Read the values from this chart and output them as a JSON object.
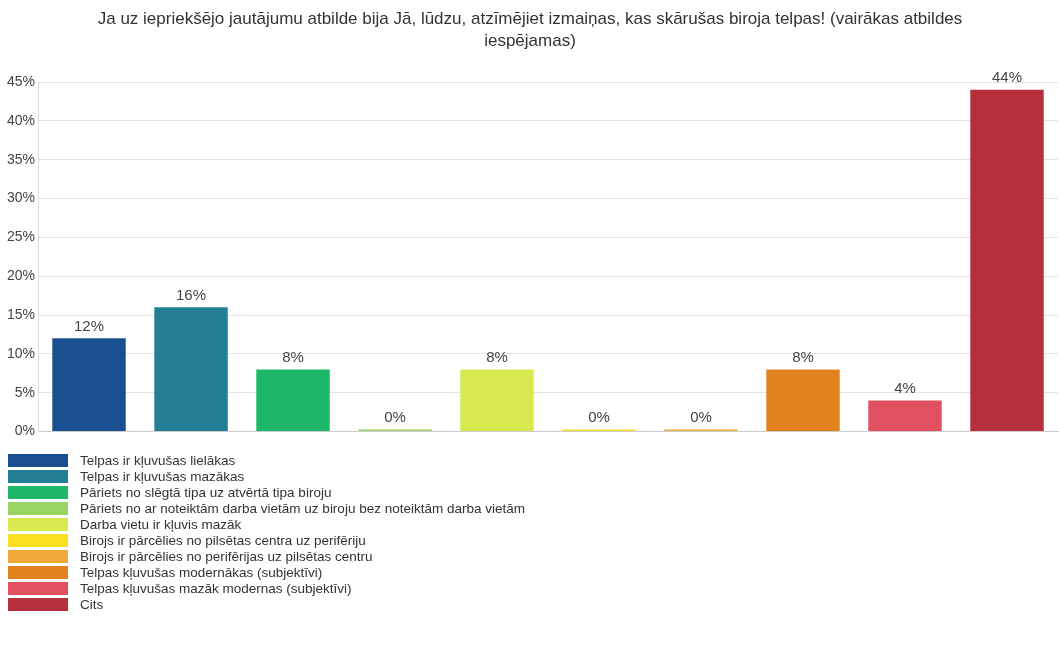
{
  "chart_data": {
    "type": "bar",
    "title": "Ja uz iepriekšējo jautājumu atbilde bija Jā, lūdzu, atzīmējiet izmaiņas, kas skārušas biroja telpas! (vairākas atbildes iespējamas)",
    "categories": [
      null
    ],
    "series": [
      {
        "name": "Telpas ir kļuvušas lielākas",
        "color": "#1a4f8f",
        "values": [
          12
        ],
        "value_labels": [
          "12%"
        ]
      },
      {
        "name": "Telpas ir kļuvušas mazākas",
        "color": "#227f95",
        "values": [
          16
        ],
        "value_labels": [
          "16%"
        ]
      },
      {
        "name": "Pāriets no slēgtā tipa uz atvērtā tipa biroju",
        "color": "#1fb86a",
        "values": [
          8
        ],
        "value_labels": [
          "8%"
        ]
      },
      {
        "name": "Pāriets no ar noteiktām darba vietām uz biroju bez noteiktām darba vietām",
        "color": "#9ad463",
        "values": [
          0
        ],
        "value_labels": [
          "0%"
        ]
      },
      {
        "name": "Darba vietu ir kļuvis mazāk",
        "color": "#d8e84f",
        "values": [
          8
        ],
        "value_labels": [
          "8%"
        ]
      },
      {
        "name": "Birojs ir pārcēlies no pilsētas centra uz perifēriju",
        "color": "#fbe022",
        "values": [
          0
        ],
        "value_labels": [
          "0%"
        ]
      },
      {
        "name": "Birojs ir pārcēlies no perifērijas uz pilsētas centru",
        "color": "#f2a93b",
        "values": [
          0
        ],
        "value_labels": [
          "0%"
        ]
      },
      {
        "name": "Telpas kļuvušas modernākas (subjektīvi)",
        "color": "#e3831f",
        "values": [
          8
        ],
        "value_labels": [
          "8%"
        ]
      },
      {
        "name": "Telpas kļuvušas mazāk modernas (subjektīvi)",
        "color": "#e05060",
        "values": [
          4
        ],
        "value_labels": [
          "4%"
        ]
      },
      {
        "name": "Cits",
        "color": "#b52f3d",
        "values": [
          44
        ],
        "value_labels": [
          "44%"
        ]
      }
    ],
    "ylim": [
      0,
      45
    ],
    "yticks": [
      {
        "value": 0,
        "label": "0%"
      },
      {
        "value": 5,
        "label": "5%"
      },
      {
        "value": 10,
        "label": "10%"
      },
      {
        "value": 15,
        "label": "15%"
      },
      {
        "value": 20,
        "label": "20%"
      },
      {
        "value": 25,
        "label": "25%"
      },
      {
        "value": 30,
        "label": "30%"
      },
      {
        "value": 35,
        "label": "35%"
      },
      {
        "value": 40,
        "label": "40%"
      },
      {
        "value": 45,
        "label": "45%"
      }
    ],
    "grid": "y",
    "legend": "bottom"
  }
}
